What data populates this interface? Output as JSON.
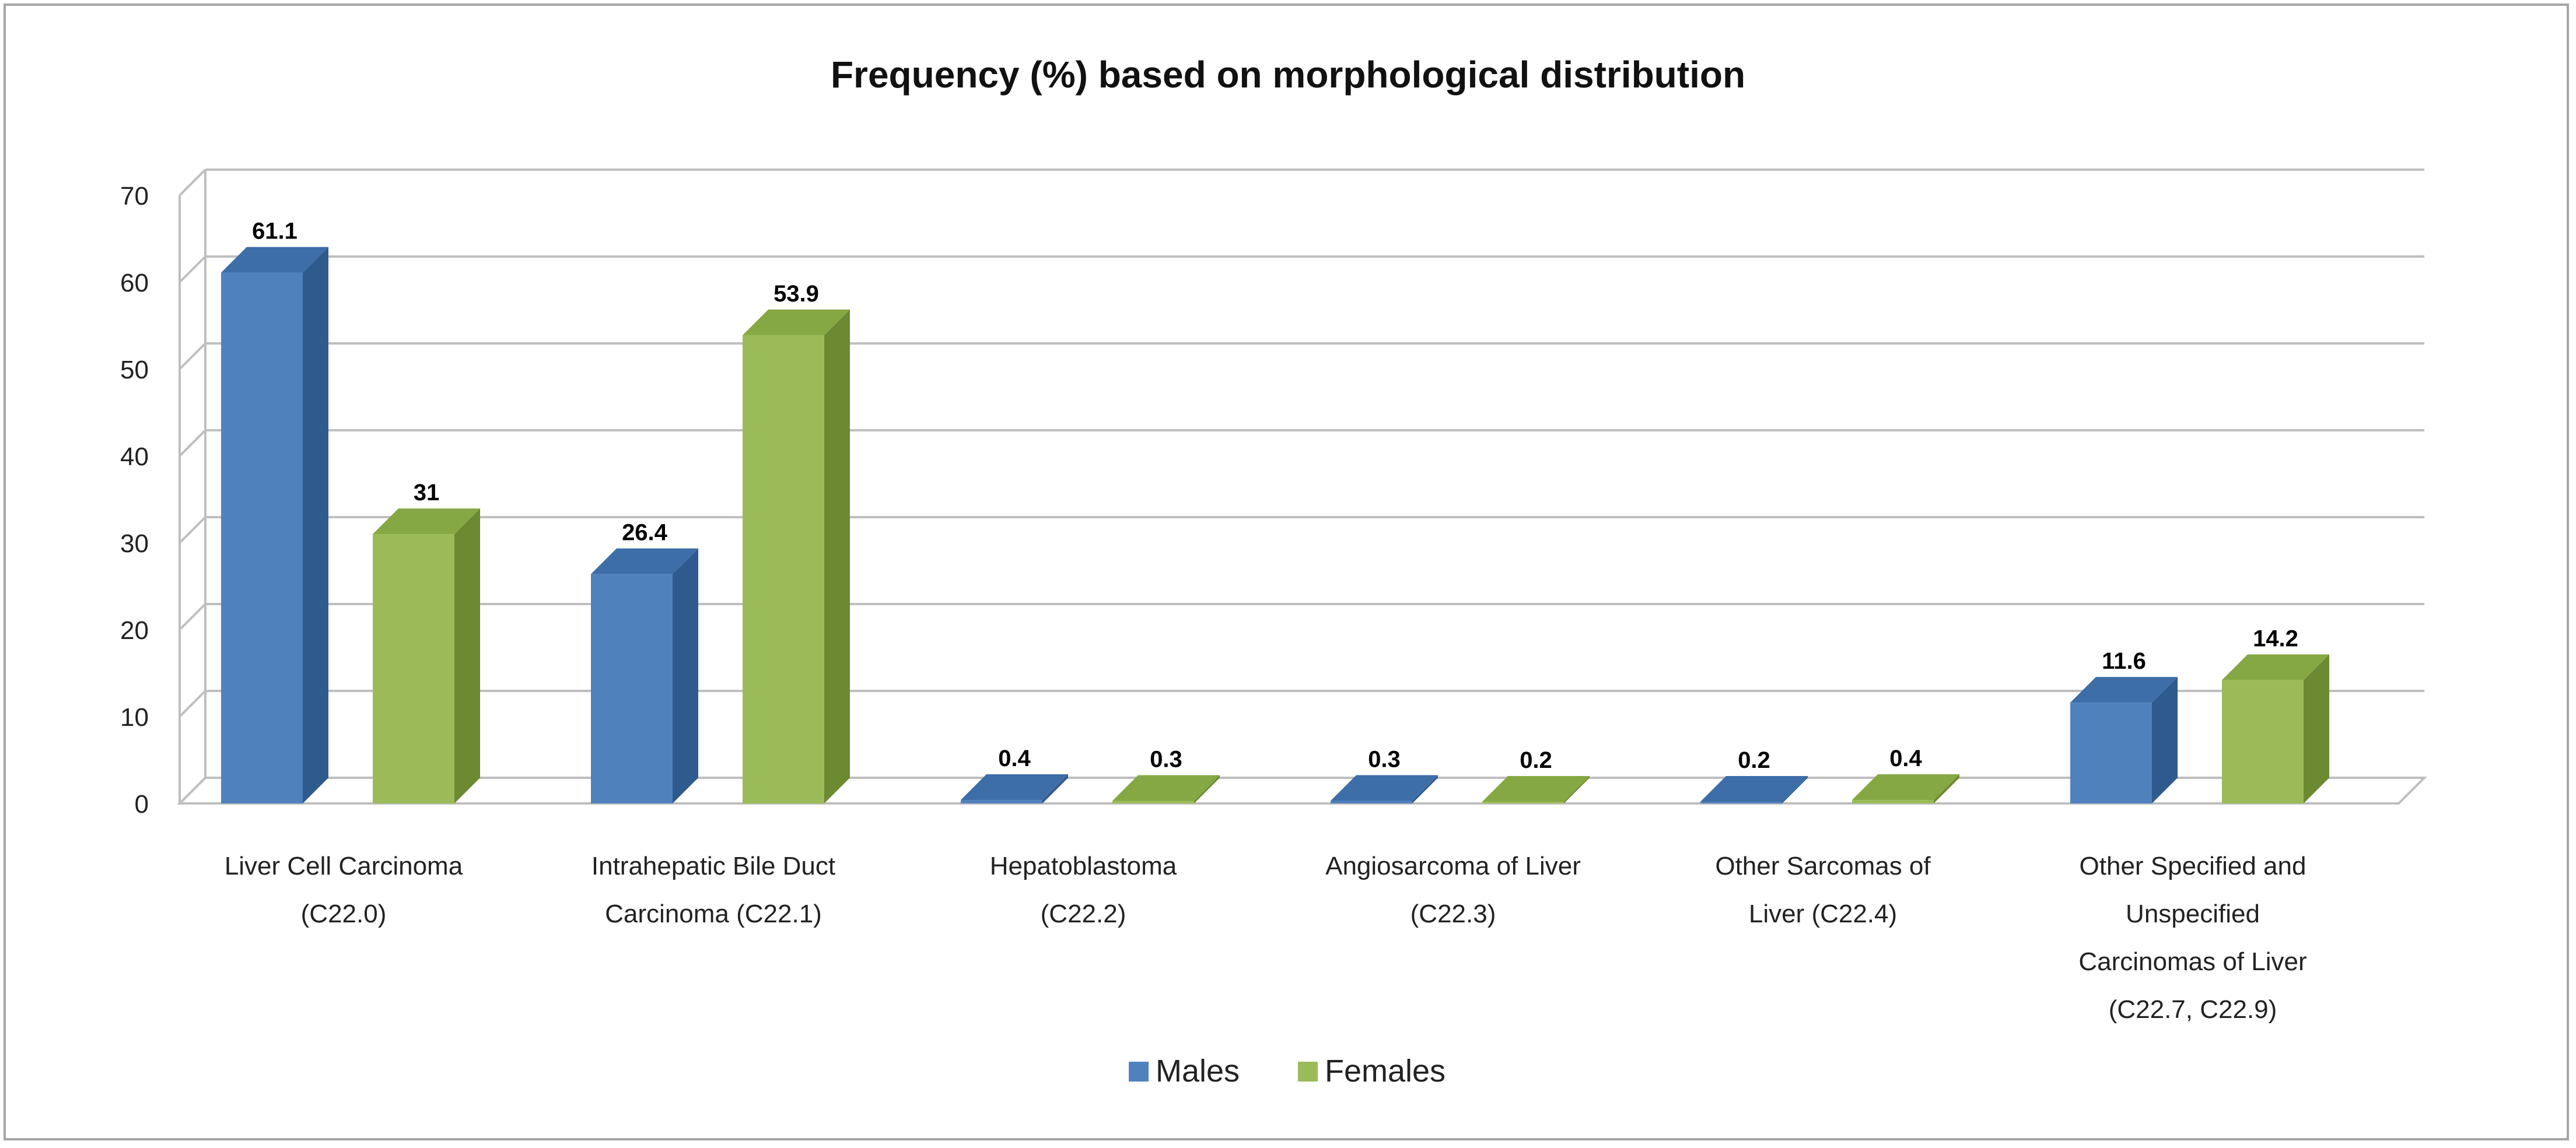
{
  "chart_data": {
    "type": "bar",
    "title": "Frequency (%) based on morphological distribution",
    "xlabel": "",
    "ylabel": "",
    "ylim": [
      0,
      70
    ],
    "yticks": [
      0,
      10,
      20,
      30,
      40,
      50,
      60,
      70
    ],
    "grid": true,
    "legend_position": "bottom",
    "categories": [
      [
        "Liver Cell Carcinoma",
        "(C22.0)"
      ],
      [
        "Intrahepatic Bile Duct",
        "Carcinoma (C22.1)"
      ],
      [
        "Hepatoblastoma",
        "(C22.2)"
      ],
      [
        "Angiosarcoma of Liver",
        "(C22.3)"
      ],
      [
        "Other Sarcomas of",
        "Liver (C22.4)"
      ],
      [
        "Other Specified and",
        "Unspecified",
        "Carcinomas of Liver",
        "(C22.7, C22.9)"
      ]
    ],
    "series": [
      {
        "name": "Males",
        "color": "#4f81bd",
        "side": "#2f5a8e",
        "top": "#3d6ea8",
        "values": [
          61.1,
          26.4,
          0.4,
          0.3,
          0.2,
          11.6
        ],
        "labels": [
          "61.1",
          "26.4",
          "0.4",
          "0.3",
          "0.2",
          "11.6"
        ]
      },
      {
        "name": "Females",
        "color": "#9bbb59",
        "side": "#6b8a32",
        "top": "#86a844",
        "values": [
          31,
          53.9,
          0.3,
          0.2,
          0.4,
          14.2
        ],
        "labels": [
          "31",
          "53.9",
          "0.3",
          "0.2",
          "0.4",
          "14.2"
        ]
      }
    ]
  }
}
